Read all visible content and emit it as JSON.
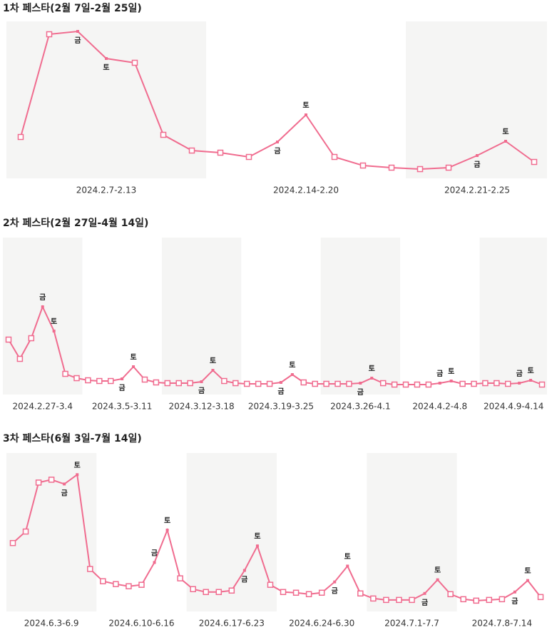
{
  "chart_data": [
    {
      "type": "line",
      "title": "1차 페스타(2월 7일-2월 25일)",
      "color": "#f06c8f",
      "shade": "#f5f5f4",
      "ylim": [
        0,
        220
      ],
      "weeks": [
        {
          "label": "2024.2.7-2.13",
          "days": 7
        },
        {
          "label": "2024.2.14-2.20",
          "days": 7
        },
        {
          "label": "2024.2.21-2.25",
          "days": 5
        }
      ],
      "values": [
        58,
        202,
        206,
        168,
        162,
        61,
        39,
        36,
        30,
        51,
        89,
        30,
        18,
        15,
        13,
        15,
        32,
        52,
        23
      ],
      "annotations": [
        {
          "index": 2,
          "text": "금",
          "position": "below"
        },
        {
          "index": 3,
          "text": "토",
          "position": "below"
        },
        {
          "index": 9,
          "text": "금",
          "position": "below"
        },
        {
          "index": 10,
          "text": "토",
          "position": "above"
        },
        {
          "index": 16,
          "text": "금",
          "position": "below"
        },
        {
          "index": 17,
          "text": "토",
          "position": "above"
        }
      ]
    },
    {
      "type": "line",
      "title": "2차 페스타(2월 27일-4월 14일)",
      "color": "#f06c8f",
      "shade": "#f5f5f4",
      "ylim": [
        0,
        220
      ],
      "weeks": [
        {
          "label": "2024.2.27-3.4",
          "days": 7
        },
        {
          "label": "2024.3.5-3.11",
          "days": 7
        },
        {
          "label": "2024.3.12-3.18",
          "days": 7
        },
        {
          "label": "2024.3.19-3.25",
          "days": 7
        },
        {
          "label": "2024.3.26-4.1",
          "days": 7
        },
        {
          "label": "2024.4.2-4.8",
          "days": 7
        },
        {
          "label": "2024.4.9-4.14",
          "days": 6
        }
      ],
      "values": [
        77,
        50,
        79,
        123,
        89,
        29,
        23,
        20,
        19,
        19,
        22,
        39,
        21,
        17,
        16,
        16,
        16,
        18,
        34,
        19,
        16,
        15,
        15,
        15,
        17,
        28,
        17,
        15,
        15,
        15,
        15,
        16,
        23,
        16,
        14,
        14,
        14,
        14,
        16,
        19,
        15,
        15,
        16,
        16,
        15,
        16,
        20,
        14
      ],
      "annotations": [
        {
          "index": 3,
          "text": "금",
          "position": "above"
        },
        {
          "index": 4,
          "text": "토",
          "position": "above"
        },
        {
          "index": 10,
          "text": "금",
          "position": "below"
        },
        {
          "index": 11,
          "text": "토",
          "position": "above"
        },
        {
          "index": 17,
          "text": "금",
          "position": "below"
        },
        {
          "index": 18,
          "text": "토",
          "position": "above"
        },
        {
          "index": 24,
          "text": "금",
          "position": "below"
        },
        {
          "index": 25,
          "text": "토",
          "position": "above"
        },
        {
          "index": 31,
          "text": "금",
          "position": "below"
        },
        {
          "index": 32,
          "text": "토",
          "position": "above"
        },
        {
          "index": 38,
          "text": "금",
          "position": "above"
        },
        {
          "index": 39,
          "text": "토",
          "position": "above"
        },
        {
          "index": 45,
          "text": "금",
          "position": "above"
        },
        {
          "index": 46,
          "text": "토",
          "position": "above"
        }
      ]
    },
    {
      "type": "line",
      "title": "3차 페스타(6월 3일-7월 14일)",
      "color": "#f06c8f",
      "shade": "#f5f5f4",
      "ylim": [
        0,
        220
      ],
      "weeks": [
        {
          "label": "2024.6.3-6.9",
          "days": 7
        },
        {
          "label": "2024.6.10-6.16",
          "days": 7
        },
        {
          "label": "2024.6.17-6.23",
          "days": 7
        },
        {
          "label": "2024.6.24-6.30",
          "days": 7
        },
        {
          "label": "2024.7.1-7.7",
          "days": 7
        },
        {
          "label": "2024.7.8-7.14",
          "days": 7
        }
      ],
      "values": [
        95,
        111,
        179,
        183,
        177,
        190,
        59,
        42,
        38,
        35,
        37,
        68,
        113,
        46,
        31,
        27,
        27,
        29,
        57,
        91,
        37,
        27,
        26,
        24,
        26,
        41,
        63,
        25,
        18,
        16,
        16,
        16,
        25,
        44,
        24,
        17,
        15,
        16,
        17,
        27,
        43,
        20
      ],
      "annotations": [
        {
          "index": 4,
          "text": "금",
          "position": "below"
        },
        {
          "index": 5,
          "text": "토",
          "position": "above"
        },
        {
          "index": 11,
          "text": "금",
          "position": "above"
        },
        {
          "index": 12,
          "text": "토",
          "position": "above"
        },
        {
          "index": 18,
          "text": "금",
          "position": "below"
        },
        {
          "index": 19,
          "text": "토",
          "position": "above"
        },
        {
          "index": 25,
          "text": "금",
          "position": "below"
        },
        {
          "index": 26,
          "text": "토",
          "position": "above"
        },
        {
          "index": 32,
          "text": "금",
          "position": "below"
        },
        {
          "index": 33,
          "text": "토",
          "position": "above"
        },
        {
          "index": 39,
          "text": "금",
          "position": "below"
        },
        {
          "index": 40,
          "text": "토",
          "position": "above"
        }
      ]
    }
  ]
}
